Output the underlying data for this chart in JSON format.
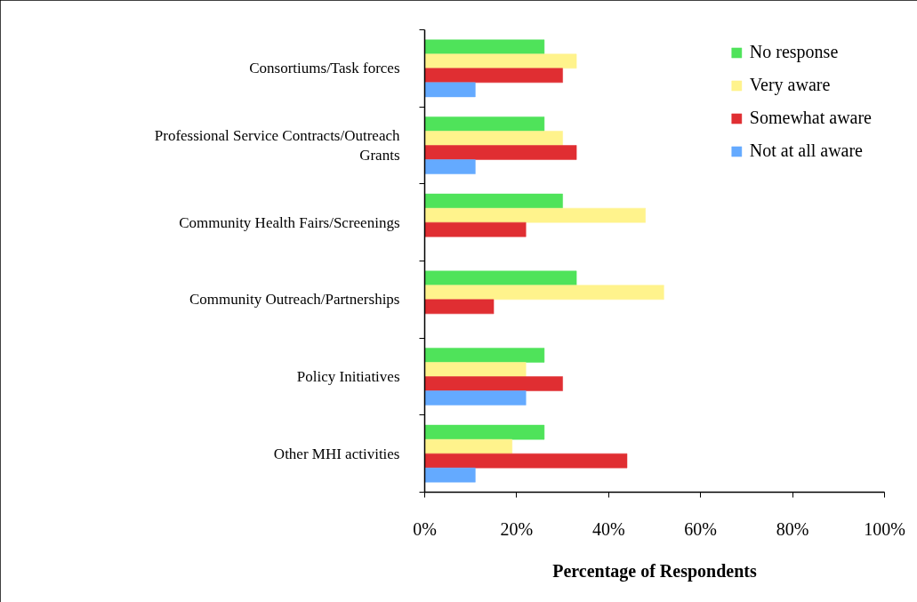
{
  "chart_data": {
    "type": "bar",
    "orientation": "horizontal",
    "xlabel": "Percentage of Respondents",
    "categories": [
      "Consortiums/Task forces",
      "Professional Service Contracts/Outreach Grants",
      "Community Health Fairs/Screenings",
      "Community Outreach/Partnerships",
      "Policy Initiatives",
      "Other MHI activities"
    ],
    "series": [
      {
        "name": "No response",
        "color": "#4fe35a",
        "values": [
          26,
          26,
          30,
          33,
          26,
          26
        ]
      },
      {
        "name": "Very aware",
        "color": "#fff38c",
        "values": [
          33,
          30,
          48,
          52,
          22,
          19
        ]
      },
      {
        "name": "Somewhat aware",
        "color": "#e02e32",
        "values": [
          30,
          33,
          22,
          15,
          30,
          44
        ]
      },
      {
        "name": "Not at all aware",
        "color": "#64aaff",
        "values": [
          11,
          11,
          null,
          null,
          22,
          11
        ]
      }
    ],
    "xlim": [
      0,
      100
    ],
    "xticks": [
      {
        "value": 0,
        "label": "0%"
      },
      {
        "value": 20,
        "label": "20%"
      },
      {
        "value": 40,
        "label": "40%"
      },
      {
        "value": 60,
        "label": "60%"
      },
      {
        "value": 80,
        "label": "80%"
      },
      {
        "value": 100,
        "label": "100%"
      }
    ],
    "grid": false,
    "legend": "top right"
  }
}
